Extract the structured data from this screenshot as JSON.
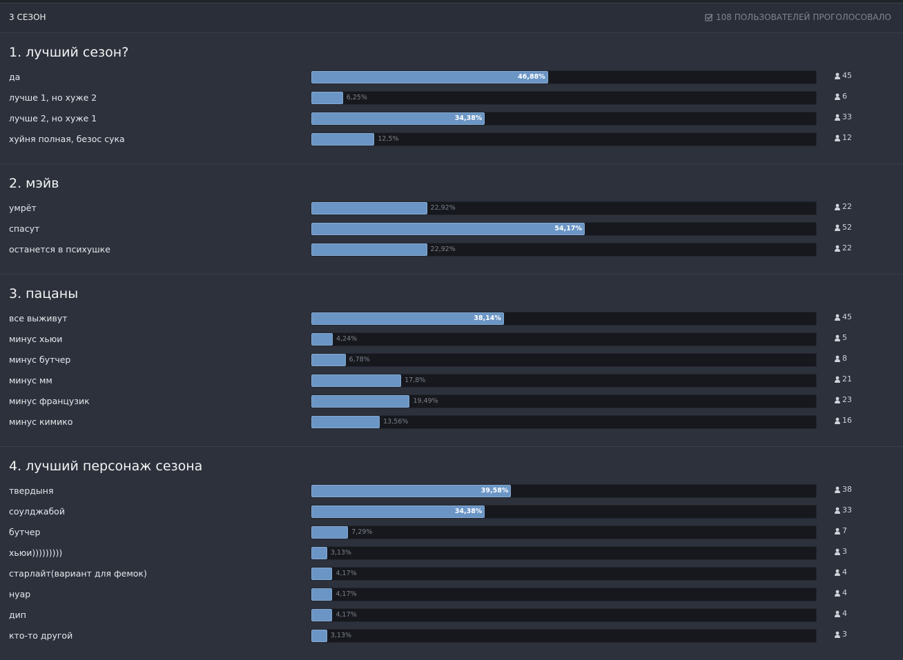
{
  "header": {
    "title": "3 СЕЗОН",
    "voters": "108 ПОЛЬЗОВАТЕЛЕЙ ПРОГОЛОСОВАЛО"
  },
  "questions": [
    {
      "title": "1. лучший сезон?",
      "options": [
        {
          "label": "да",
          "percent": {
            "value": 46.88,
            "label": "46,88%"
          },
          "votes": 45
        },
        {
          "label": "лучше 1, но хуже 2",
          "percent": {
            "value": 6.25,
            "label": "6,25%"
          },
          "votes": 6
        },
        {
          "label": "лучше 2, но хуже 1",
          "percent": {
            "value": 34.38,
            "label": "34,38%"
          },
          "votes": 33
        },
        {
          "label": "хуйня полная, безос сука",
          "percent": {
            "value": 12.5,
            "label": "12,5%"
          },
          "votes": 12
        }
      ]
    },
    {
      "title": "2. мэйв",
      "options": [
        {
          "label": "умрёт",
          "percent": {
            "value": 22.92,
            "label": "22,92%"
          },
          "votes": 22
        },
        {
          "label": "спасут",
          "percent": {
            "value": 54.17,
            "label": "54,17%"
          },
          "votes": 52
        },
        {
          "label": "останется в психушке",
          "percent": {
            "value": 22.92,
            "label": "22,92%"
          },
          "votes": 22
        }
      ]
    },
    {
      "title": "3. пацаны",
      "options": [
        {
          "label": "все выживут",
          "percent": {
            "value": 38.14,
            "label": "38,14%"
          },
          "votes": 45
        },
        {
          "label": "минус хьюи",
          "percent": {
            "value": 4.24,
            "label": "4,24%"
          },
          "votes": 5
        },
        {
          "label": "минус бутчер",
          "percent": {
            "value": 6.78,
            "label": "6,78%"
          },
          "votes": 8
        },
        {
          "label": "минус мм",
          "percent": {
            "value": 17.8,
            "label": "17,8%"
          },
          "votes": 21
        },
        {
          "label": "минус французик",
          "percent": {
            "value": 19.49,
            "label": "19,49%"
          },
          "votes": 23
        },
        {
          "label": "минус кимико",
          "percent": {
            "value": 13.56,
            "label": "13,56%"
          },
          "votes": 16
        }
      ]
    },
    {
      "title": "4. лучший персонаж сезона",
      "options": [
        {
          "label": "твердыня",
          "percent": {
            "value": 39.58,
            "label": "39,58%"
          },
          "votes": 38
        },
        {
          "label": "соулджабой",
          "percent": {
            "value": 34.38,
            "label": "34,38%"
          },
          "votes": 33
        },
        {
          "label": "бутчер",
          "percent": {
            "value": 7.29,
            "label": "7,29%"
          },
          "votes": 7
        },
        {
          "label": "хьюи)))))))))",
          "percent": {
            "value": 3.13,
            "label": "3,13%"
          },
          "votes": 3
        },
        {
          "label": "старлайт(вариант для фемок)",
          "percent": {
            "value": 4.17,
            "label": "4,17%"
          },
          "votes": 4
        },
        {
          "label": "нуар",
          "percent": {
            "value": 4.17,
            "label": "4,17%"
          },
          "votes": 4
        },
        {
          "label": "дип",
          "percent": {
            "value": 4.17,
            "label": "4,17%"
          },
          "votes": 4
        },
        {
          "label": "кто-то другой",
          "percent": {
            "value": 3.13,
            "label": "3,13%"
          },
          "votes": 3
        }
      ]
    }
  ]
}
